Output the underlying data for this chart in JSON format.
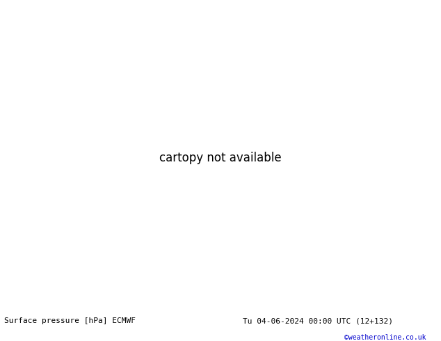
{
  "title_left": "Surface pressure [hPa] ECMWF",
  "title_right": "Tu 04-06-2024 00:00 UTC (12+132)",
  "watermark": "©weatheronline.co.uk",
  "land_color": "#aaddaa",
  "water_color": "#cccccc",
  "figsize": [
    6.34,
    4.9
  ],
  "dpi": 100,
  "map_extent": [
    15,
    155,
    25,
    80
  ],
  "isobars_red": {
    "color": "#cc0000",
    "linewidth": 1.0
  },
  "isobars_black": {
    "color": "#000000",
    "linewidth": 1.2
  },
  "isobars_blue": {
    "color": "#0000cc",
    "linewidth": 1.0
  }
}
